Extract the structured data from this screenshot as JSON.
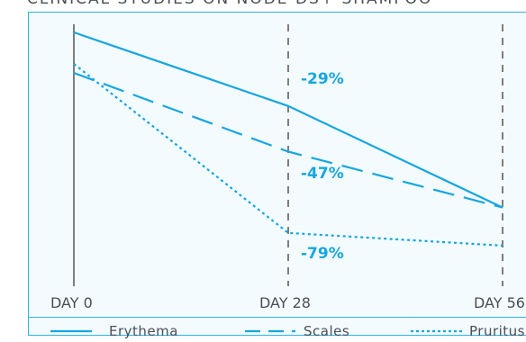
{
  "header": {
    "title": "CLINICAL STUDIES ON NODE DS+ SHAMPOO"
  },
  "chart_data": {
    "type": "line",
    "title": "CLINICAL STUDIES ON NODE DS+ SHAMPOO",
    "categories": [
      "DAY 0",
      "DAY 28",
      "DAY 56"
    ],
    "series": [
      {
        "name": "Erythema",
        "values": [
          100,
          71,
          31
        ],
        "style": "solid"
      },
      {
        "name": "Scales",
        "values": [
          100,
          53,
          31
        ],
        "style": "dashed"
      },
      {
        "name": "Pruritus",
        "values": [
          100,
          21,
          16
        ],
        "style": "dotted"
      }
    ],
    "annotations": [
      "-29%",
      "-47%",
      "-79%"
    ],
    "color": "#16a6e0",
    "grid": "vertical dashed at DAY 28 and DAY 56",
    "legend": "bottom"
  }
}
